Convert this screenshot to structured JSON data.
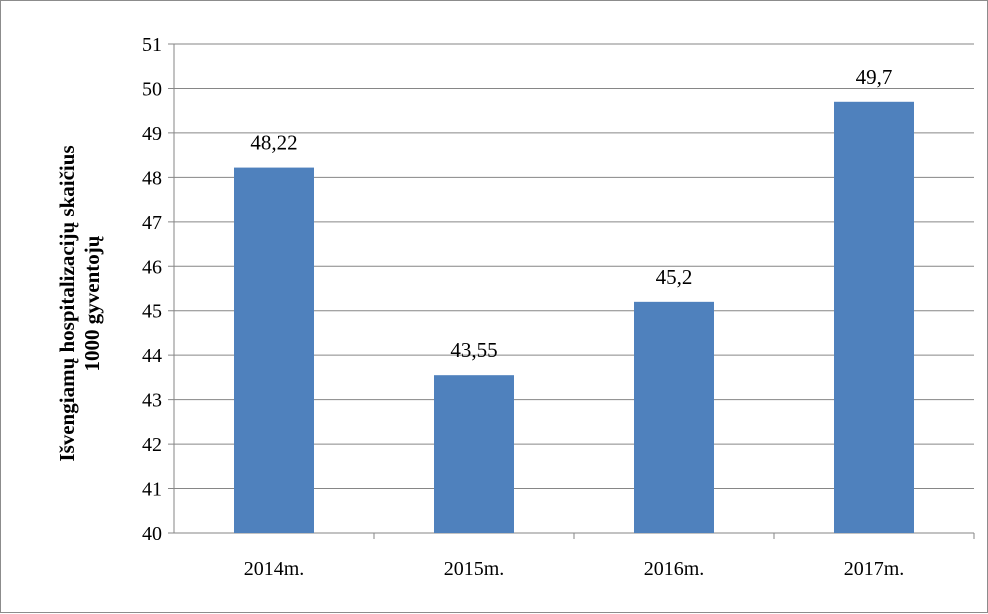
{
  "chart_data": {
    "type": "bar",
    "categories": [
      "2014m.",
      "2015m.",
      "2016m.",
      "2017m."
    ],
    "values": [
      48.22,
      43.55,
      45.2,
      49.7
    ],
    "data_labels": [
      "48,22",
      "43,55",
      "45,2",
      "49,7"
    ],
    "ylabel_line1": "Išvengiamų hospitalizacijų skaičius",
    "ylabel_line2": "1000 gyventojų",
    "ylim": [
      40,
      51
    ],
    "yticks": [
      40,
      41,
      42,
      43,
      44,
      45,
      46,
      47,
      48,
      49,
      50,
      51
    ],
    "grid": true,
    "legend": "none",
    "bar_color": "#4f81bd"
  }
}
